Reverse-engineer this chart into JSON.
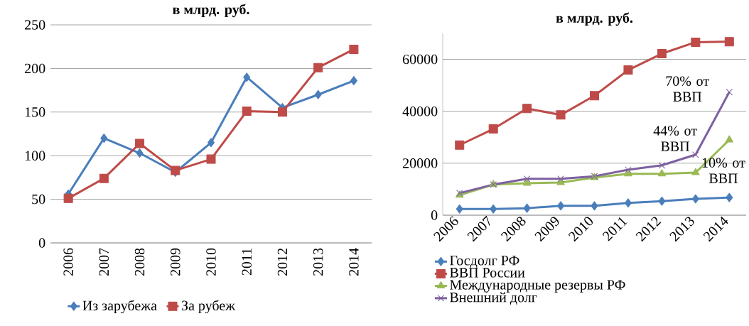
{
  "chart_data": [
    {
      "type": "line",
      "title": "в млрд. руб.",
      "categories": [
        "2006",
        "2007",
        "2008",
        "2009",
        "2010",
        "2011",
        "2012",
        "2013",
        "2014"
      ],
      "ylim": [
        0,
        250
      ],
      "yticks": [
        0,
        50,
        100,
        150,
        200,
        250
      ],
      "grid": "y",
      "legend": "bottom",
      "series": [
        {
          "name": "Из зарубежа",
          "color": "#4a7ebb",
          "marker": "diamond",
          "values": [
            56,
            120,
            103,
            81,
            115,
            190,
            155,
            170,
            186
          ]
        },
        {
          "name": "За рубеж",
          "color": "#be4b48",
          "marker": "square",
          "values": [
            51,
            74,
            114,
            83,
            96,
            151,
            150,
            201,
            222
          ]
        }
      ]
    },
    {
      "type": "line",
      "title": "в млрд. руб.",
      "categories": [
        "2006",
        "2007",
        "2008",
        "2009",
        "2010",
        "2011",
        "2012",
        "2013",
        "2014"
      ],
      "ylim": [
        0,
        70000
      ],
      "yticks": [
        0,
        20000,
        40000,
        60000
      ],
      "grid": "y",
      "legend": "bottom",
      "series": [
        {
          "name": "Госдолг РФ",
          "color": "#4a7ebb",
          "marker": "diamond",
          "values": [
            2400,
            2400,
            2700,
            3600,
            3600,
            4700,
            5400,
            6300,
            6800
          ]
        },
        {
          "name": "ВВП России",
          "color": "#be4b48",
          "marker": "square",
          "values": [
            27000,
            33200,
            41100,
            38600,
            46000,
            55900,
            62200,
            66600,
            66800
          ]
        },
        {
          "name": "Международные резервы РФ",
          "color": "#98b954",
          "marker": "triangle",
          "values": [
            7700,
            11800,
            12300,
            12600,
            14500,
            15900,
            15900,
            16400,
            29000
          ]
        },
        {
          "name": "Внешний долг",
          "color": "#7d60a0",
          "marker": "cross",
          "values": [
            8500,
            11800,
            14000,
            14000,
            15000,
            17500,
            19200,
            23300,
            47400
          ]
        }
      ],
      "annotations": [
        "70% от ВВП",
        "44% от ВВП",
        "10% от ВВП"
      ]
    }
  ]
}
